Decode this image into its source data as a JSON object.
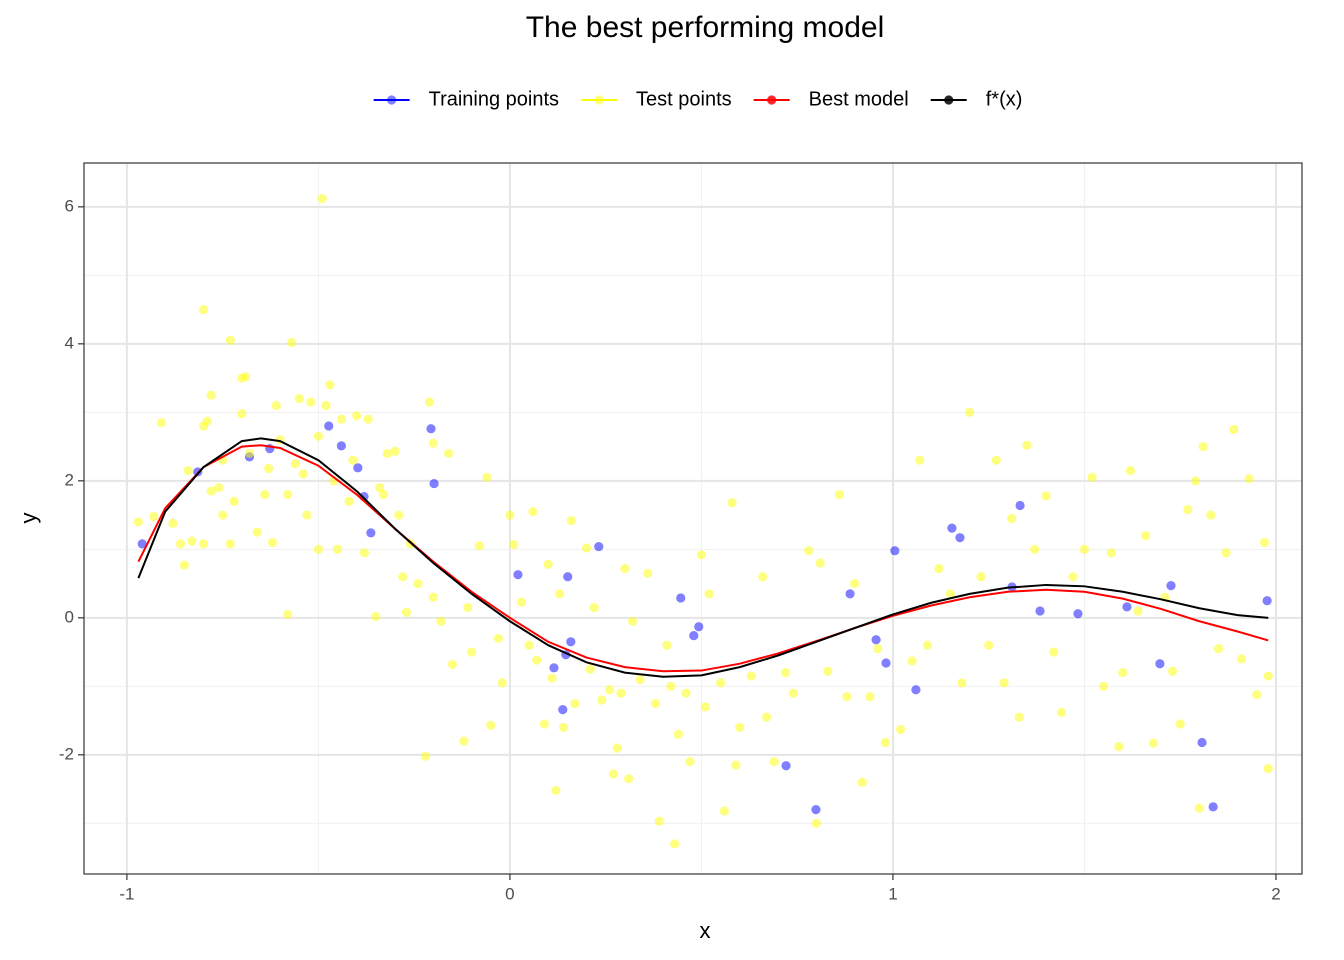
{
  "chart_data": {
    "type": "scatter",
    "title": "The best performing model",
    "x_label": "x",
    "y_label": "y",
    "xlim": [
      -1.112,
      2.068
    ],
    "ylim": [
      -3.74,
      6.64
    ],
    "xticks": [
      -1,
      0,
      1,
      2
    ],
    "yticks": [
      -2,
      0,
      2,
      4,
      6
    ],
    "x_minor_ticks": [
      -0.5,
      0.5,
      1.5
    ],
    "y_minor_ticks": [
      -3,
      -1,
      1,
      3,
      5
    ],
    "grid": true,
    "legend_position": "top",
    "series": [
      {
        "name": "Training points",
        "color": "#0000ff",
        "mode": "markers",
        "x": [
          -0.96,
          -0.815,
          -0.68,
          -0.627,
          -0.473,
          -0.44,
          -0.397,
          -0.381,
          -0.363,
          -0.206,
          -0.198,
          0.021,
          0.115,
          0.138,
          0.146,
          0.151,
          0.159,
          0.232,
          0.446,
          0.48,
          0.493,
          0.721,
          0.799,
          0.888,
          0.956,
          0.982,
          1.005,
          1.06,
          1.154,
          1.175,
          1.311,
          1.332,
          1.384,
          1.483,
          1.611,
          1.697,
          1.726,
          1.807,
          1.836,
          1.977
        ],
        "values": [
          1.08,
          2.13,
          2.35,
          2.47,
          2.8,
          2.51,
          2.19,
          1.77,
          1.24,
          2.76,
          1.96,
          0.63,
          -0.73,
          -1.34,
          -0.54,
          0.6,
          -0.35,
          1.04,
          0.29,
          -0.26,
          -0.13,
          -2.16,
          -2.8,
          0.35,
          -0.32,
          -0.66,
          0.98,
          -1.05,
          1.31,
          1.17,
          0.45,
          1.64,
          0.1,
          0.06,
          0.16,
          -0.67,
          0.47,
          -1.82,
          -2.76,
          0.25
        ]
      },
      {
        "name": "Test points",
        "color": "#ffff00",
        "mode": "markers",
        "x": [
          -0.97,
          -0.93,
          -0.91,
          -0.88,
          -0.86,
          -0.85,
          -0.84,
          -0.83,
          -0.8,
          -0.8,
          -0.8,
          -0.79,
          -0.78,
          -0.78,
          -0.76,
          -0.75,
          -0.75,
          -0.73,
          -0.73,
          -0.72,
          -0.7,
          -0.7,
          -0.69,
          -0.68,
          -0.66,
          -0.64,
          -0.63,
          -0.62,
          -0.61,
          -0.6,
          -0.58,
          -0.58,
          -0.57,
          -0.56,
          -0.55,
          -0.54,
          -0.53,
          -0.52,
          -0.5,
          -0.5,
          -0.49,
          -0.48,
          -0.47,
          -0.46,
          -0.45,
          -0.44,
          -0.42,
          -0.41,
          -0.4,
          -0.38,
          -0.37,
          -0.35,
          -0.34,
          -0.33,
          -0.32,
          -0.3,
          -0.29,
          -0.28,
          -0.27,
          -0.26,
          -0.24,
          -0.22,
          -0.21,
          -0.2,
          -0.2,
          -0.18,
          -0.16,
          -0.15,
          -0.12,
          -0.11,
          -0.1,
          -0.08,
          -0.06,
          -0.05,
          -0.03,
          -0.02,
          0,
          0.01,
          0.03,
          0.05,
          0.06,
          0.07,
          0.09,
          0.1,
          0.11,
          0.12,
          0.13,
          0.14,
          0.16,
          0.17,
          0.2,
          0.21,
          0.22,
          0.24,
          0.26,
          0.27,
          0.28,
          0.29,
          0.3,
          0.31,
          0.32,
          0.34,
          0.36,
          0.38,
          0.39,
          0.41,
          0.42,
          0.43,
          0.44,
          0.46,
          0.47,
          0.5,
          0.51,
          0.52,
          0.55,
          0.56,
          0.58,
          0.59,
          0.6,
          0.63,
          0.66,
          0.67,
          0.69,
          0.72,
          0.74,
          0.78,
          0.8,
          0.81,
          0.83,
          0.86,
          0.88,
          0.9,
          0.92,
          0.94,
          0.96,
          0.98,
          1.02,
          1.05,
          1.07,
          1.09,
          1.12,
          1.15,
          1.18,
          1.2,
          1.23,
          1.25,
          1.27,
          1.29,
          1.31,
          1.33,
          1.35,
          1.37,
          1.4,
          1.42,
          1.44,
          1.47,
          1.5,
          1.52,
          1.55,
          1.57,
          1.59,
          1.6,
          1.62,
          1.64,
          1.66,
          1.68,
          1.71,
          1.73,
          1.75,
          1.77,
          1.79,
          1.8,
          1.81,
          1.83,
          1.85,
          1.87,
          1.89,
          1.91,
          1.93,
          1.95,
          1.97,
          1.98,
          1.98
        ],
        "values": [
          1.4,
          1.48,
          2.85,
          1.38,
          1.08,
          0.77,
          2.15,
          1.12,
          2.8,
          4.5,
          1.08,
          2.87,
          1.85,
          3.25,
          1.9,
          1.5,
          2.3,
          4.05,
          1.08,
          1.7,
          3.5,
          2.98,
          3.52,
          2.4,
          1.25,
          1.8,
          2.18,
          1.1,
          3.1,
          2.6,
          1.8,
          0.05,
          4.02,
          2.25,
          3.2,
          2.1,
          1.5,
          3.15,
          2.65,
          1.0,
          6.12,
          3.1,
          3.4,
          2.0,
          1.0,
          2.9,
          1.7,
          2.3,
          2.95,
          0.95,
          2.9,
          0.02,
          1.9,
          1.8,
          2.4,
          2.43,
          1.5,
          0.6,
          0.08,
          1.08,
          0.5,
          -2.02,
          3.15,
          2.55,
          0.3,
          -0.05,
          2.4,
          -0.68,
          -1.8,
          0.15,
          -0.5,
          1.05,
          2.05,
          -1.57,
          -0.3,
          -0.95,
          1.5,
          1.07,
          0.23,
          -0.4,
          1.55,
          -0.62,
          -1.55,
          0.78,
          -0.88,
          -2.52,
          0.35,
          -1.6,
          1.42,
          -1.25,
          1.02,
          -0.75,
          0.15,
          -1.2,
          -1.05,
          -2.28,
          -1.9,
          -1.1,
          0.72,
          -2.35,
          -0.05,
          -0.9,
          0.65,
          -1.25,
          -2.97,
          -0.4,
          -1.0,
          -3.3,
          -1.7,
          -1.1,
          -2.1,
          0.92,
          -1.3,
          0.35,
          -0.95,
          -2.82,
          1.68,
          -2.15,
          -1.6,
          -0.85,
          0.6,
          -1.45,
          -2.1,
          -0.8,
          -1.1,
          0.98,
          -3.0,
          0.8,
          -0.78,
          1.8,
          -1.15,
          0.5,
          -2.4,
          -1.15,
          -0.45,
          -1.82,
          -1.63,
          -0.63,
          2.3,
          -0.4,
          0.72,
          0.35,
          -0.95,
          3.0,
          0.6,
          -0.4,
          2.3,
          -0.95,
          1.45,
          -1.45,
          2.52,
          1.0,
          1.78,
          -0.5,
          -1.38,
          0.6,
          1.0,
          2.05,
          -1.0,
          0.95,
          -1.88,
          -0.8,
          2.15,
          0.1,
          1.2,
          -1.83,
          0.3,
          -0.78,
          -1.55,
          1.58,
          2.0,
          -2.78,
          2.5,
          1.5,
          -0.45,
          0.95,
          2.75,
          -0.6,
          2.03,
          -1.12,
          1.1,
          -2.2,
          -0.85
        ]
      },
      {
        "name": "Best model",
        "color": "#ff0000",
        "mode": "line",
        "x": [
          -0.97,
          -0.9,
          -0.8,
          -0.7,
          -0.65,
          -0.6,
          -0.5,
          -0.4,
          -0.3,
          -0.2,
          -0.1,
          0,
          0.1,
          0.2,
          0.3,
          0.4,
          0.5,
          0.6,
          0.7,
          0.8,
          0.9,
          1.0,
          1.1,
          1.2,
          1.3,
          1.4,
          1.5,
          1.6,
          1.7,
          1.8,
          1.9,
          1.98
        ],
        "values": [
          0.82,
          1.6,
          2.2,
          2.5,
          2.52,
          2.48,
          2.22,
          1.8,
          1.3,
          0.82,
          0.38,
          0,
          -0.35,
          -0.58,
          -0.72,
          -0.78,
          -0.77,
          -0.67,
          -0.52,
          -0.34,
          -0.15,
          0.03,
          0.18,
          0.3,
          0.38,
          0.41,
          0.38,
          0.28,
          0.13,
          -0.05,
          -0.2,
          -0.33
        ]
      },
      {
        "name": "f*(x)",
        "color": "#000000",
        "mode": "line",
        "x": [
          -0.97,
          -0.9,
          -0.8,
          -0.7,
          -0.65,
          -0.6,
          -0.5,
          -0.4,
          -0.3,
          -0.2,
          -0.1,
          0,
          0.1,
          0.2,
          0.3,
          0.4,
          0.5,
          0.6,
          0.7,
          0.8,
          0.9,
          1.0,
          1.1,
          1.2,
          1.3,
          1.4,
          1.5,
          1.6,
          1.7,
          1.8,
          1.9,
          1.98
        ],
        "values": [
          0.58,
          1.55,
          2.2,
          2.58,
          2.62,
          2.58,
          2.3,
          1.85,
          1.3,
          0.8,
          0.35,
          -0.05,
          -0.4,
          -0.65,
          -0.8,
          -0.86,
          -0.84,
          -0.72,
          -0.55,
          -0.35,
          -0.15,
          0.05,
          0.22,
          0.35,
          0.44,
          0.48,
          0.46,
          0.38,
          0.27,
          0.14,
          0.04,
          0.0
        ]
      }
    ]
  }
}
